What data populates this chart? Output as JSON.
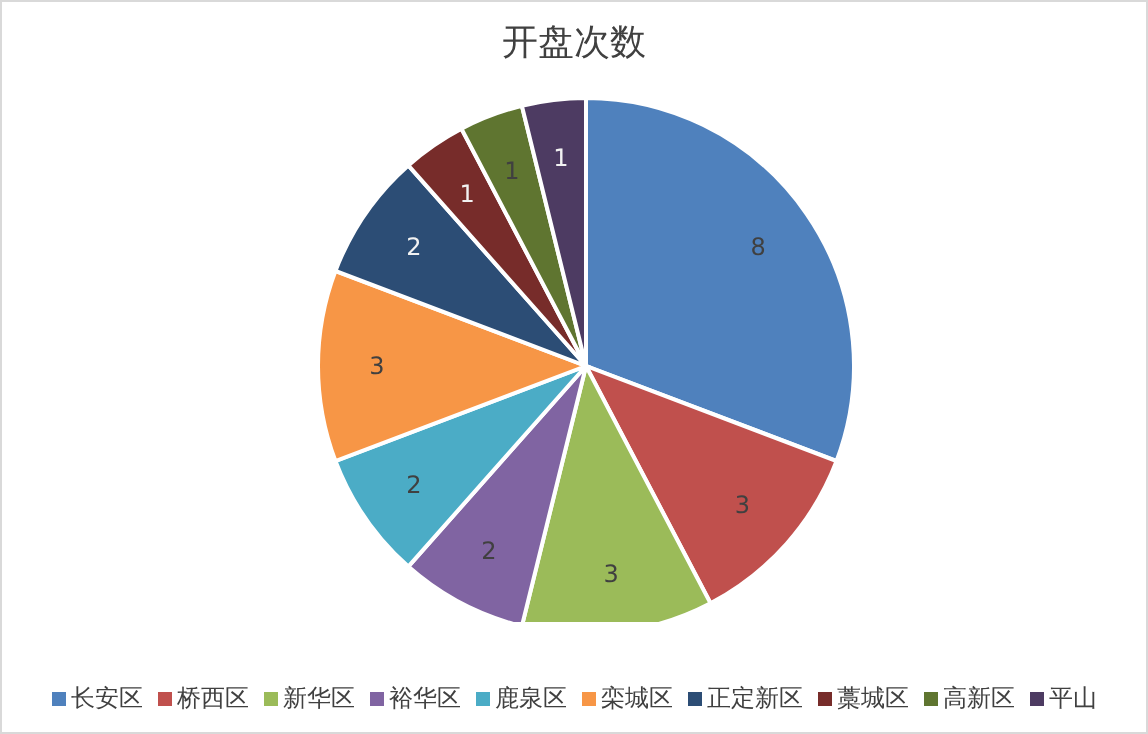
{
  "chart_data": {
    "type": "pie",
    "title": "开盘次数",
    "categories": [
      "长安区",
      "桥西区",
      "新华区",
      "裕华区",
      "鹿泉区",
      "栾城区",
      "正定新区",
      "藁城区",
      "高新区",
      "平山"
    ],
    "values": [
      8,
      3,
      3,
      2,
      2,
      3,
      2,
      1,
      1,
      1
    ],
    "colors": [
      "#4f81bd",
      "#c0504d",
      "#9bbb59",
      "#8064a2",
      "#4bacc6",
      "#f79646",
      "#2c4d75",
      "#772c2a",
      "#5f7530",
      "#4d3b62"
    ],
    "data_labels": true,
    "legend": "bottom"
  }
}
